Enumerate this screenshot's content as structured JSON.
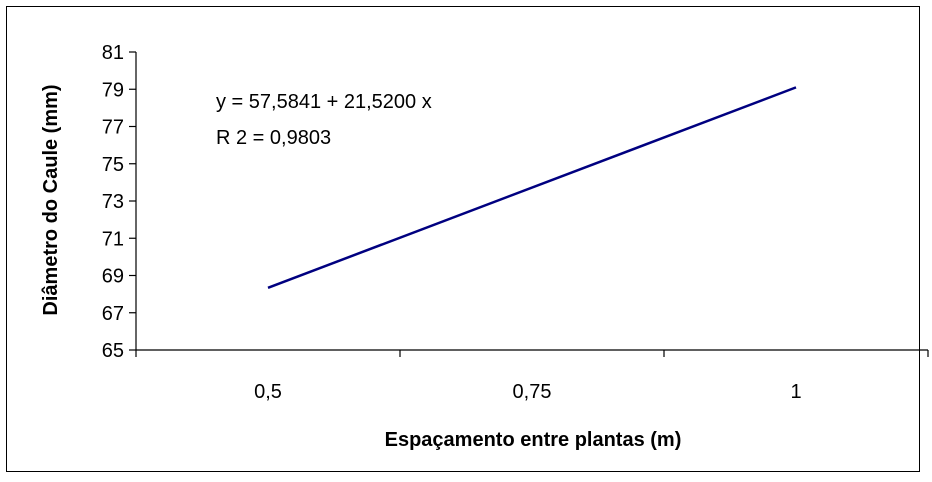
{
  "chart_data": {
    "type": "line",
    "title": "",
    "xlabel": "Espaçamento entre plantas (m)",
    "ylabel": "Diâmetro do Caule (mm)",
    "x_ticks": [
      "0,5",
      "0,75",
      "1"
    ],
    "y_ticks": [
      "65",
      "67",
      "69",
      "71",
      "73",
      "75",
      "77",
      "79",
      "81"
    ],
    "ylim": [
      65,
      81
    ],
    "xlim": [
      0.375,
      1.125
    ],
    "grid": false,
    "series": [
      {
        "x": [
          0.5,
          1.0
        ],
        "y": [
          68.34,
          79.1
        ]
      }
    ],
    "line_color": "#000080",
    "annotations": [
      "y = 57,5841 + 21,5200 x",
      "R 2 = 0,9803"
    ]
  }
}
